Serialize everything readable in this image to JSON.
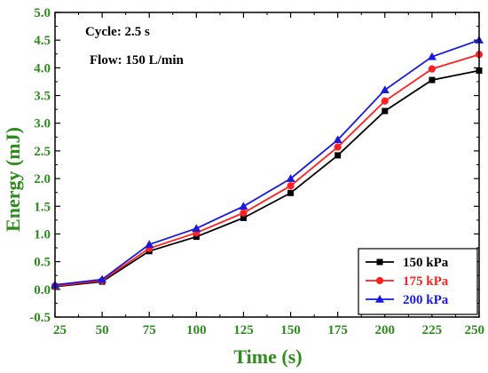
{
  "chart_data": {
    "type": "line",
    "title": "",
    "xlabel": "Time (s)",
    "ylabel": "Energy (mJ)",
    "xlim": [
      25,
      250
    ],
    "ylim": [
      -0.5,
      5.0
    ],
    "x": [
      25,
      50,
      75,
      100,
      125,
      150,
      175,
      200,
      225,
      250
    ],
    "x_ticks": [
      "25",
      "50",
      "75",
      "100",
      "125",
      "150",
      "175",
      "200",
      "225",
      "250"
    ],
    "y_ticks": [
      "-0.5",
      "0.0",
      "0.5",
      "1.0",
      "1.5",
      "2.0",
      "2.5",
      "3.0",
      "3.5",
      "4.0",
      "4.5",
      "5.0"
    ],
    "annotations": [
      "Cycle: 2.5 s",
      "Flow: 150 L/min"
    ],
    "legend_position": "bottom-right",
    "grid": false,
    "series": [
      {
        "name": "150 kPa",
        "color": "#000000",
        "marker": "square",
        "values": [
          0.05,
          0.14,
          0.69,
          0.95,
          1.29,
          1.74,
          2.42,
          3.22,
          3.78,
          3.95
        ]
      },
      {
        "name": "175 kPa",
        "color": "#ff2020",
        "marker": "circle",
        "values": [
          0.06,
          0.16,
          0.74,
          1.02,
          1.38,
          1.87,
          2.57,
          3.4,
          3.98,
          4.24
        ]
      },
      {
        "name": "200 kPa",
        "color": "#1a1adc",
        "marker": "triangle",
        "values": [
          0.08,
          0.18,
          0.81,
          1.1,
          1.5,
          2.0,
          2.7,
          3.6,
          4.2,
          4.5
        ]
      }
    ]
  }
}
